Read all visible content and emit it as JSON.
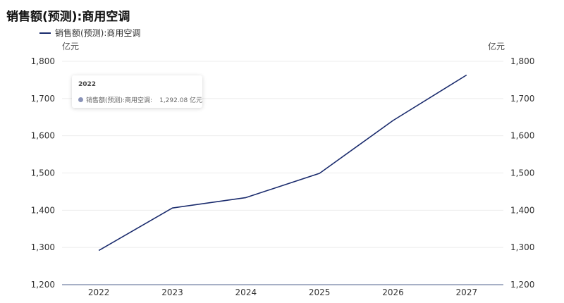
{
  "chart_data": {
    "type": "line",
    "title": "销售额(预测):商用空调",
    "unit_left": "亿元",
    "unit_right": "亿元",
    "x": [
      "2022",
      "2023",
      "2024",
      "2025",
      "2026",
      "2027"
    ],
    "series": [
      {
        "name": "销售额(预测):商用空调",
        "values": [
          1292.08,
          1406,
          1434,
          1499,
          1641,
          1763
        ]
      }
    ],
    "ylim": [
      1200,
      1800
    ],
    "yticks": [
      "1,200",
      "1,300",
      "1,400",
      "1,500",
      "1,600",
      "1,700",
      "1,800"
    ],
    "grid": true,
    "legend_position": "top-left",
    "line_color": "#1a2b6d"
  },
  "tooltip": {
    "year": "2022",
    "label": "销售额(预测):商用空调:",
    "value": "1,292.08 亿元"
  }
}
